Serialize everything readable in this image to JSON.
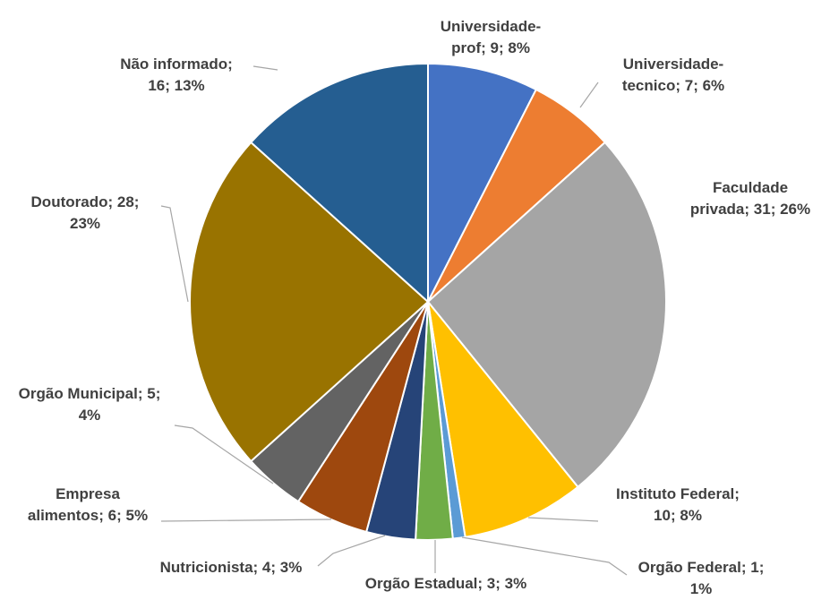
{
  "chart_data": {
    "type": "pie",
    "categories": [
      "Universidade-prof",
      "Universidade-tecnico",
      "Faculdade privada",
      "Instituto Federal",
      "Orgão Federal",
      "Orgão Estadual",
      "Nutricionista",
      "Empresa alimentos",
      "Orgão Municipal",
      "Doutorado",
      "Não informado"
    ],
    "values": [
      9,
      7,
      31,
      10,
      1,
      3,
      4,
      6,
      5,
      28,
      16
    ],
    "percents": [
      8,
      6,
      26,
      8,
      1,
      3,
      3,
      5,
      4,
      23,
      13
    ],
    "percent_labels": [
      "8%",
      "6%",
      "26%",
      "8%",
      "1%",
      "3%",
      "3%",
      "5%",
      "4%",
      "23%",
      "13%"
    ],
    "label_separator": "; ",
    "colors": [
      "#4472c4",
      "#ed7d31",
      "#a5a5a5",
      "#ffc000",
      "#5b9bd5",
      "#70ad47",
      "#264478",
      "#9e480e",
      "#636363",
      "#997300",
      "#255e91"
    ]
  }
}
